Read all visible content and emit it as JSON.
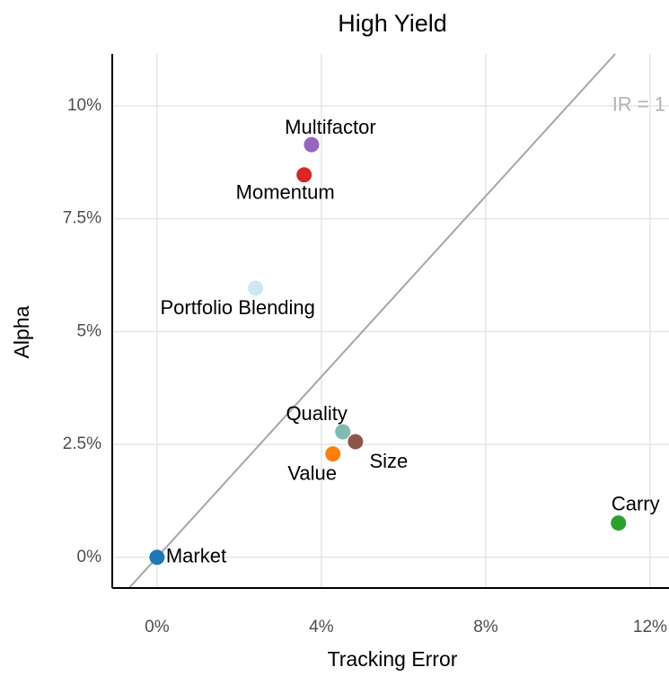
{
  "chart_data": {
    "type": "scatter",
    "title": "High Yield",
    "x_label": "Tracking Error",
    "y_label": "Alpha",
    "categories": [
      "Market",
      "Multifactor",
      "Momentum",
      "Portfolio Blending",
      "Quality",
      "Size",
      "Value",
      "Carry"
    ],
    "x": [
      0,
      3.76,
      3.58,
      2.4,
      4.52,
      4.83,
      4.28,
      11.23
    ],
    "values": [
      0,
      9.14,
      8.47,
      5.96,
      2.78,
      2.56,
      2.29,
      0.76
    ],
    "colors": [
      "#1f77b4",
      "#9467bd",
      "#d62728",
      "#cbe8f4",
      "#80bab3",
      "#8c564b",
      "#ff7f0e",
      "#2ca02c"
    ],
    "annotations": [
      {
        "text": "IR = 1"
      }
    ],
    "xlim": [
      -1.09,
      12.46
    ],
    "ylim": [
      -0.68,
      11.15
    ],
    "xticks": [
      {
        "value": 0,
        "label": "0%"
      },
      {
        "value": 4,
        "label": "4%"
      },
      {
        "value": 8,
        "label": "8%"
      },
      {
        "value": 12,
        "label": "12%"
      }
    ],
    "yticks": [
      {
        "value": 0,
        "label": "0%"
      },
      {
        "value": 2.5,
        "label": "2.5%"
      },
      {
        "value": 5,
        "label": "5%"
      },
      {
        "value": 7.5,
        "label": "7.5%"
      },
      {
        "value": 10,
        "label": "10%"
      }
    ],
    "grid": true
  }
}
